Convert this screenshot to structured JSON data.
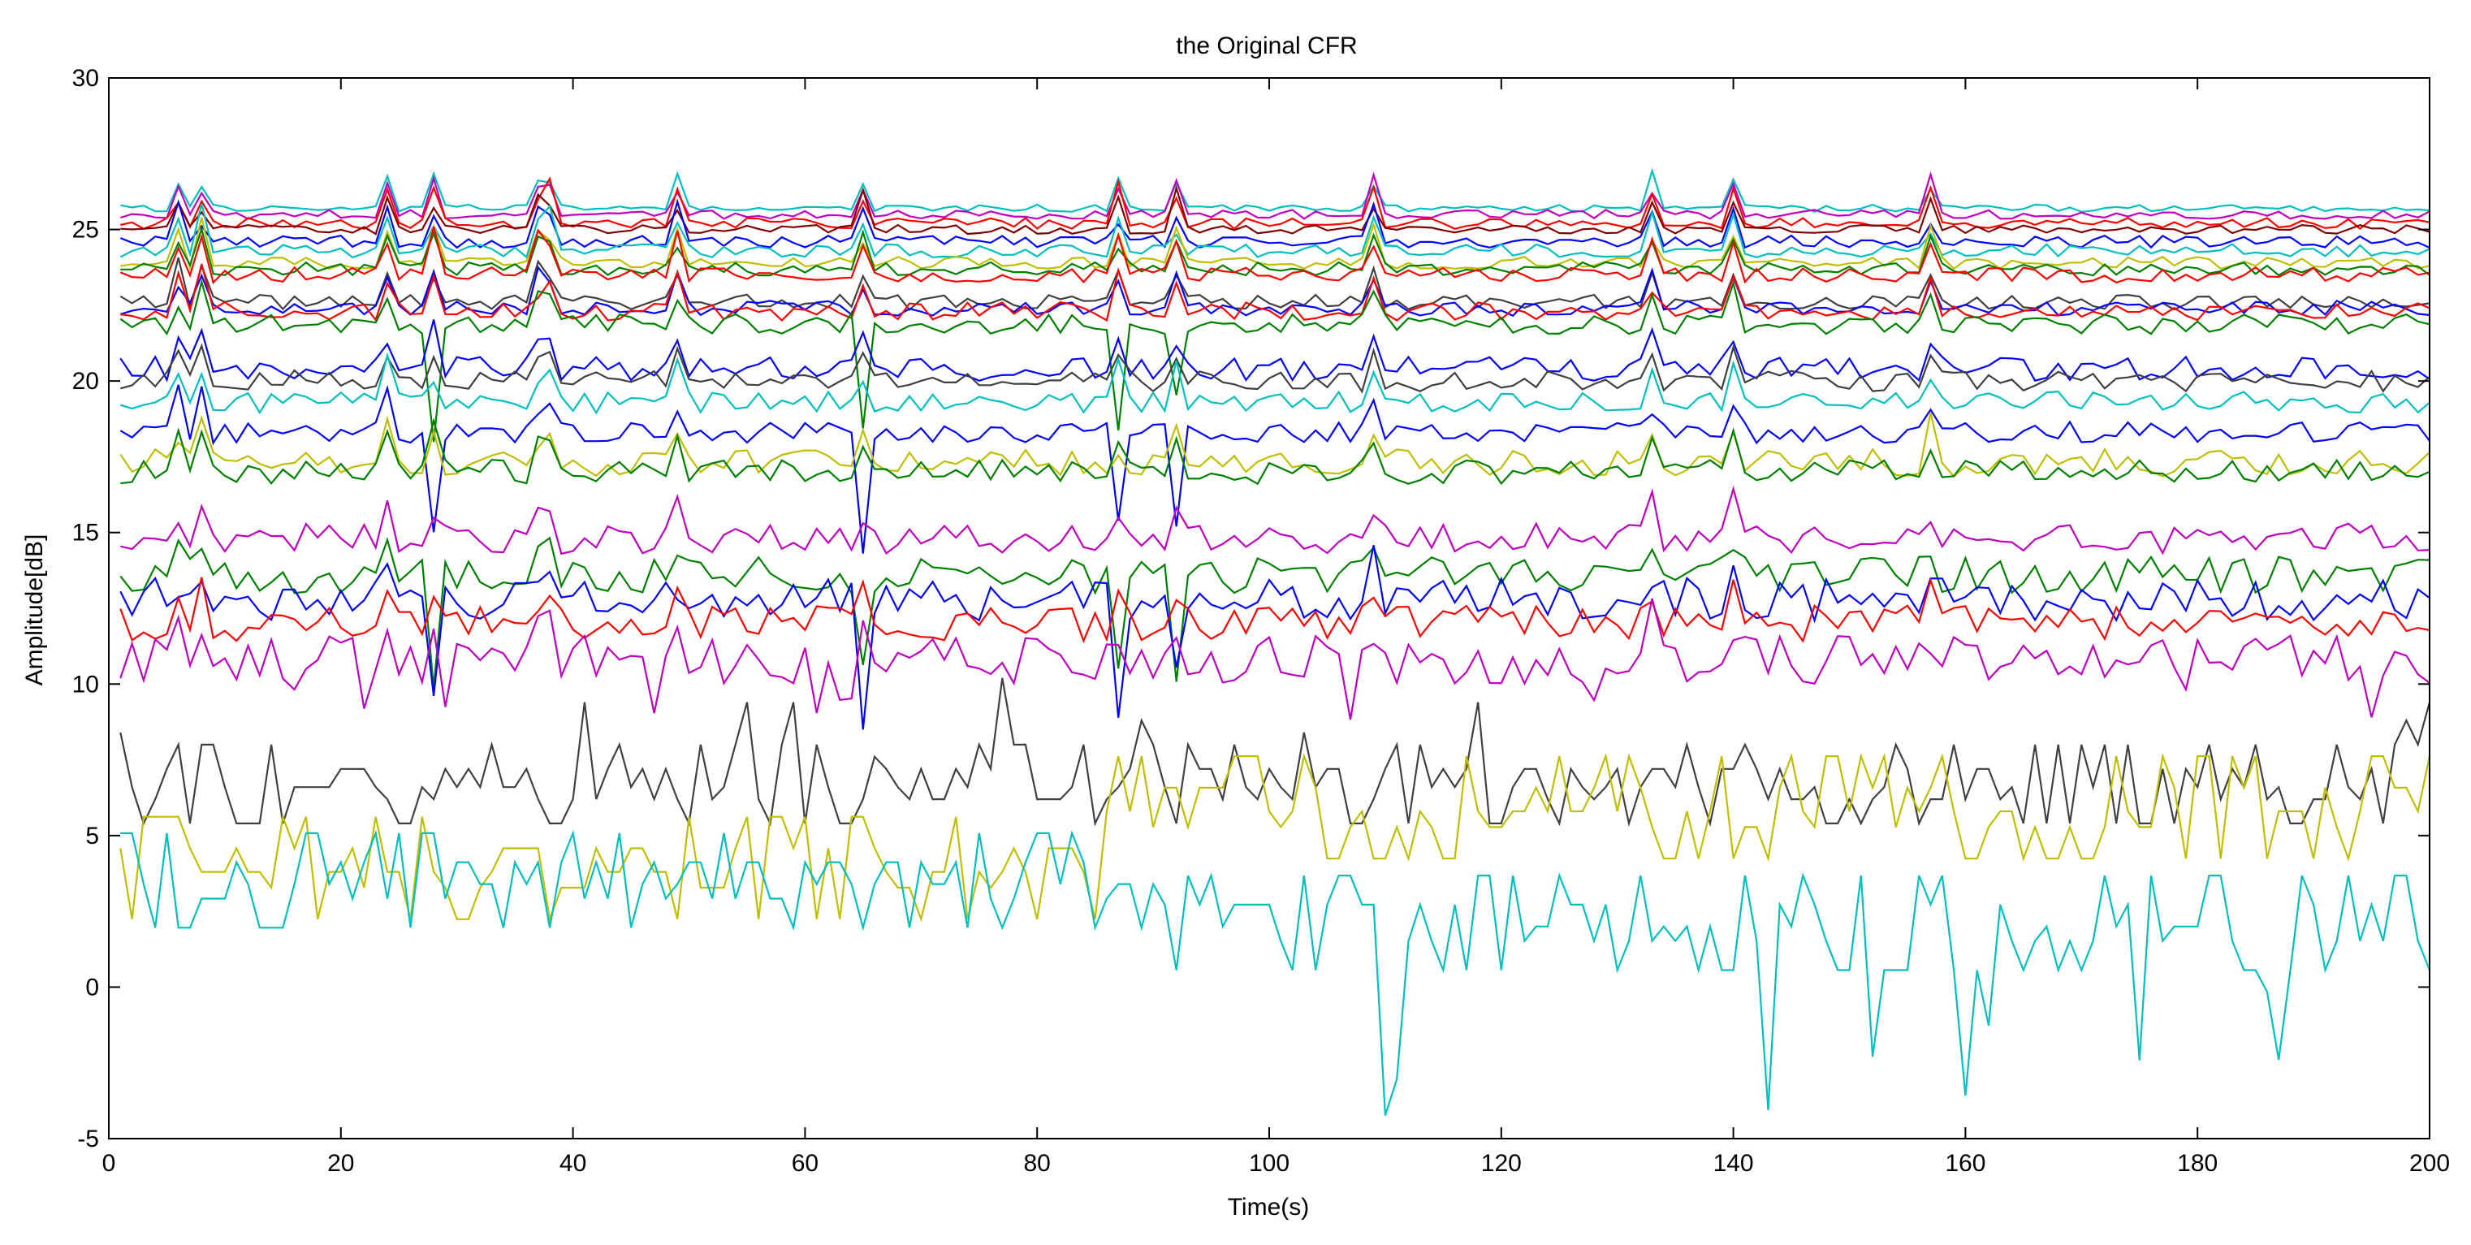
{
  "chart_data": {
    "type": "line",
    "title": "the Original CFR",
    "xlabel": "Time(s)",
    "ylabel": "Amplitude[dB]",
    "xlim": [
      0,
      200
    ],
    "ylim": [
      -5,
      30
    ],
    "grid": false,
    "legend": "none",
    "xticks": [
      0,
      20,
      40,
      60,
      80,
      100,
      120,
      140,
      160,
      180,
      200
    ],
    "yticks": [
      -5,
      0,
      5,
      10,
      15,
      20,
      25,
      30
    ],
    "x_start": 1,
    "x_step": 1,
    "n_points": 200,
    "series": [
      {
        "name": "s1",
        "color": "#00bfbf",
        "mean": 25.7,
        "noise": 0.12,
        "seed": 11,
        "style": "top"
      },
      {
        "name": "s2",
        "color": "#bf00bf",
        "mean": 25.5,
        "noise": 0.15,
        "seed": 12,
        "style": "top"
      },
      {
        "name": "s3",
        "color": "#ff0000",
        "mean": 25.2,
        "noise": 0.18,
        "seed": 13,
        "style": "top"
      },
      {
        "name": "s4",
        "color": "#800000",
        "mean": 25.0,
        "noise": 0.15,
        "seed": 14,
        "style": "top"
      },
      {
        "name": "s5",
        "color": "#0000ff",
        "mean": 24.6,
        "noise": 0.2,
        "seed": 15,
        "style": "top"
      },
      {
        "name": "s6",
        "color": "#00bfbf",
        "mean": 24.3,
        "noise": 0.22,
        "seed": 16,
        "style": "top"
      },
      {
        "name": "s7",
        "color": "#bfbf00",
        "mean": 23.9,
        "noise": 0.2,
        "seed": 17,
        "style": "top"
      },
      {
        "name": "s8",
        "color": "#008000",
        "mean": 23.7,
        "noise": 0.22,
        "seed": 18,
        "style": "top"
      },
      {
        "name": "s9",
        "color": "#ff0000",
        "mean": 23.5,
        "noise": 0.25,
        "seed": 19,
        "style": "top"
      },
      {
        "name": "s10",
        "color": "#404040",
        "mean": 22.6,
        "noise": 0.25,
        "seed": 20,
        "style": "top"
      },
      {
        "name": "s11",
        "color": "#0000ff",
        "mean": 22.4,
        "noise": 0.25,
        "seed": 21,
        "style": "top"
      },
      {
        "name": "s12",
        "color": "#ff0000",
        "mean": 22.3,
        "noise": 0.3,
        "seed": 22,
        "style": "top"
      },
      {
        "name": "s13",
        "color": "#008000",
        "mean": 21.9,
        "noise": 0.35,
        "seed": 23,
        "style": "dip"
      },
      {
        "name": "s14",
        "color": "#0000ff",
        "mean": 20.4,
        "noise": 0.4,
        "seed": 24,
        "style": "mid"
      },
      {
        "name": "s15",
        "color": "#404040",
        "mean": 20.0,
        "noise": 0.35,
        "seed": 25,
        "style": "mid"
      },
      {
        "name": "s16",
        "color": "#00bfbf",
        "mean": 19.3,
        "noise": 0.35,
        "seed": 26,
        "style": "mid"
      },
      {
        "name": "s17",
        "color": "#0000ff",
        "mean": 18.3,
        "noise": 0.35,
        "seed": 27,
        "style": "dip"
      },
      {
        "name": "s18",
        "color": "#bfbf00",
        "mean": 17.3,
        "noise": 0.45,
        "seed": 28,
        "style": "mid"
      },
      {
        "name": "s19",
        "color": "#008000",
        "mean": 17.0,
        "noise": 0.4,
        "seed": 29,
        "style": "mid"
      },
      {
        "name": "s20",
        "color": "#bf00bf",
        "mean": 14.8,
        "noise": 0.5,
        "seed": 30,
        "style": "mid"
      },
      {
        "name": "s21",
        "color": "#008000",
        "mean": 13.6,
        "noise": 0.6,
        "seed": 31,
        "style": "dip"
      },
      {
        "name": "s22",
        "color": "#0000ff",
        "mean": 12.8,
        "noise": 0.7,
        "seed": 32,
        "style": "dip"
      },
      {
        "name": "s23",
        "color": "#ff0000",
        "mean": 12.0,
        "noise": 0.6,
        "seed": 33,
        "style": "mid"
      },
      {
        "name": "s24",
        "color": "#bf00bf",
        "mean": 10.8,
        "noise": 0.8,
        "seed": 34,
        "style": "low"
      },
      {
        "name": "s25",
        "color": "#404040",
        "mean": 6.6,
        "noise": 1.0,
        "seed": 35,
        "style": "noisy"
      },
      {
        "name": "s26",
        "color": "#bfbf00",
        "mean": 3.8,
        "noise": 1.3,
        "seed": 36,
        "style": "noisy_rise"
      },
      {
        "name": "s27",
        "color": "#00bfbf",
        "mean": 3.4,
        "noise": 1.2,
        "seed": 37,
        "style": "noisy_drop"
      }
    ]
  }
}
